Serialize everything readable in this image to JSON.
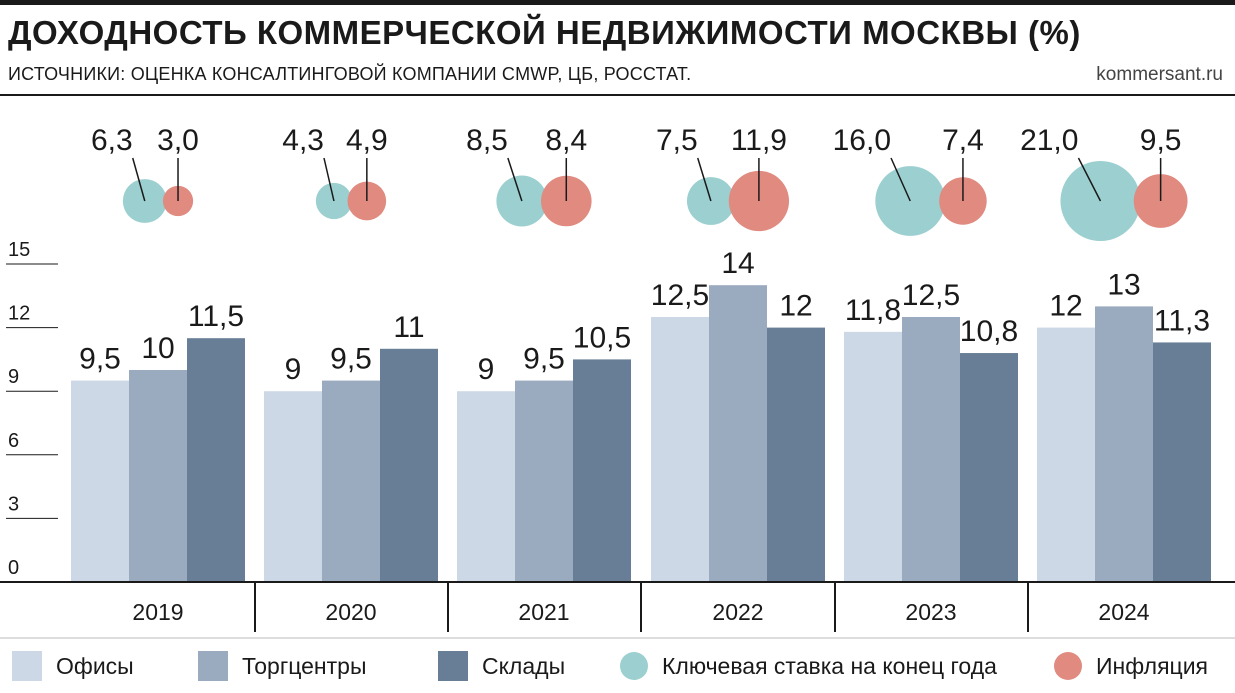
{
  "header": {
    "title": "ДОХОДНОСТЬ КОММЕРЧЕСКОЙ НЕДВИЖИМОСТИ МОСКВЫ (%)",
    "subtitle": "ИСТОЧНИКИ: ОЦЕНКА КОНСАЛТИНГОВОЙ КОМПАНИИ CMWP, ЦБ, РОССТАТ.",
    "site": "kommersant.ru"
  },
  "colors": {
    "offices": "#cdd8e6",
    "malls": "#9aaabf",
    "warehouses": "#687d96",
    "key_rate": "#9ccfcf",
    "inflation": "#e08a80"
  },
  "chart_data": {
    "type": "bar",
    "categories": [
      "2019",
      "2020",
      "2021",
      "2022",
      "2023",
      "2024"
    ],
    "ylim": [
      0,
      15
    ],
    "yticks": [
      "0",
      "3",
      "6",
      "9",
      "12",
      "15"
    ],
    "series": [
      {
        "name": "Офисы",
        "values": [
          9.5,
          9,
          9,
          12.5,
          11.8,
          12
        ],
        "labels": [
          "9,5",
          "9",
          "9",
          "12,5",
          "11,8",
          "12"
        ],
        "color": "#cdd8e6"
      },
      {
        "name": "Торгцентры",
        "values": [
          10,
          9.5,
          9.5,
          14,
          12.5,
          13
        ],
        "labels": [
          "10",
          "9,5",
          "9,5",
          "14",
          "12,5",
          "13"
        ],
        "color": "#9aaabf"
      },
      {
        "name": "Склады",
        "values": [
          11.5,
          11,
          10.5,
          12,
          10.8,
          11.3
        ],
        "labels": [
          "11,5",
          "11",
          "10,5",
          "12",
          "10,8",
          "11,3"
        ],
        "color": "#687d96"
      }
    ],
    "bubbles": [
      {
        "name": "Ключевая ставка на конец года",
        "values": [
          6.3,
          4.3,
          8.5,
          7.5,
          16.0,
          21.0
        ],
        "labels": [
          "6,3",
          "4,3",
          "8,5",
          "7,5",
          "16,0",
          "21,0"
        ],
        "color": "#9ccfcf"
      },
      {
        "name": "Инфляция",
        "values": [
          3.0,
          4.9,
          8.4,
          11.9,
          7.4,
          9.5
        ],
        "labels": [
          "3,0",
          "4,9",
          "8,4",
          "11,9",
          "7,4",
          "9,5"
        ],
        "color": "#e08a80"
      }
    ],
    "legend_position": "bottom"
  }
}
